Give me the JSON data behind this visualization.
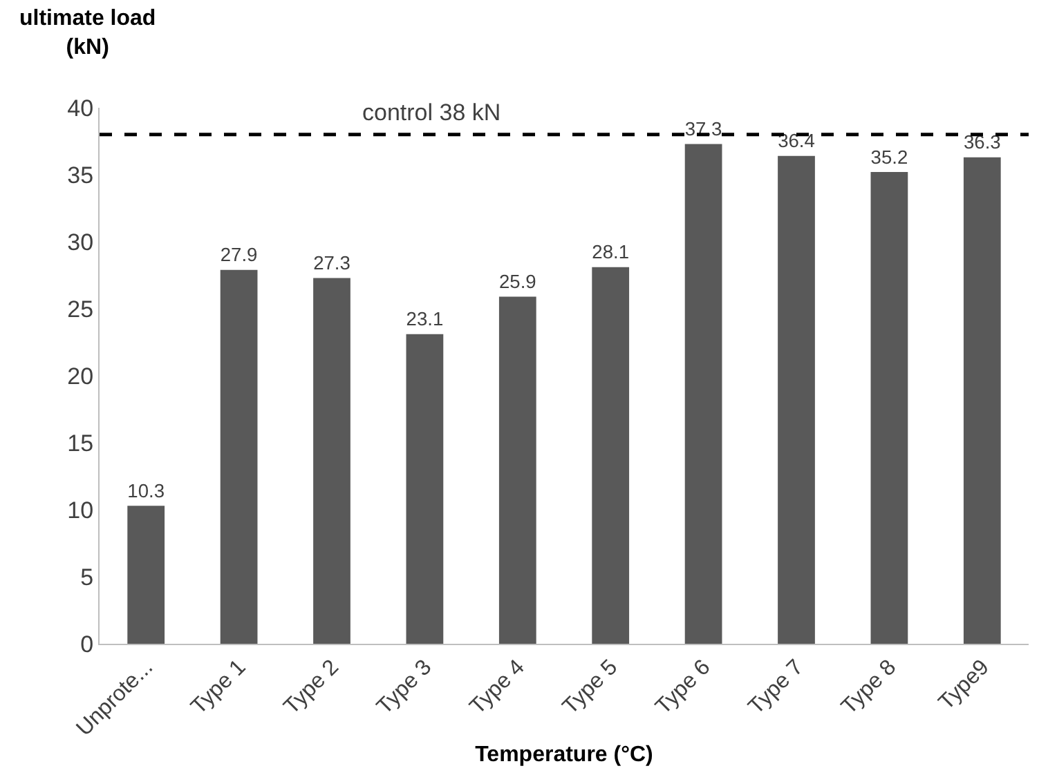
{
  "chart_data": {
    "type": "bar",
    "xlabel": "Temperature (°C)",
    "ylabel": "ultimate load (kN)",
    "categories": [
      "Unprote...",
      "Type 1",
      "Type 2",
      "Type 3",
      "Type 4",
      "Type 5",
      "Type 6",
      "Type 7",
      "Type 8",
      "Type9"
    ],
    "values": [
      10.3,
      27.9,
      27.3,
      23.1,
      25.9,
      28.1,
      37.3,
      36.4,
      35.2,
      36.3
    ],
    "color": "#595959",
    "data_labels": true,
    "ylim": [
      0,
      40
    ],
    "yticks": [
      0,
      5,
      10,
      15,
      20,
      25,
      30,
      35,
      40
    ],
    "grid": false,
    "ref_lines": [
      {
        "axis": "y",
        "value": 38,
        "label": "control 38 kN",
        "color": "#000000",
        "line_style": "dashed"
      }
    ]
  }
}
